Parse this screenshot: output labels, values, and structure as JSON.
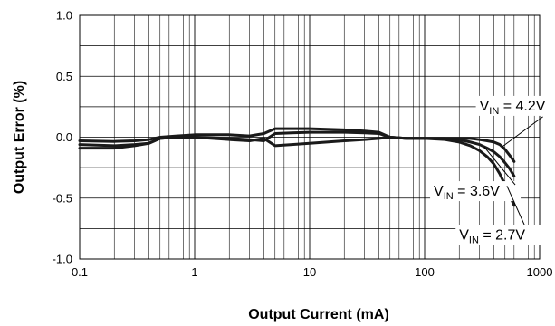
{
  "chart_data": {
    "type": "line",
    "title": "",
    "xlabel": "Output Current (mA)",
    "ylabel": "Output Error (%)",
    "xscale": "log",
    "xlim": [
      0.1,
      1000
    ],
    "ylim": [
      -1.0,
      1.0
    ],
    "x_tick_labels": [
      "0.1",
      "1",
      "10",
      "100",
      "1000"
    ],
    "y_tick_labels": [
      "1.0",
      "0.5",
      "0.0",
      "-0.5",
      "-1.0"
    ],
    "grid": true,
    "line_color": "#1a1a1a",
    "series": [
      {
        "x": [
          0.1,
          0.2,
          0.3,
          0.4,
          0.5,
          0.7,
          1,
          2,
          3,
          4,
          5,
          7,
          10,
          20,
          30,
          40,
          50,
          70,
          100,
          150,
          200,
          250,
          300,
          350,
          400,
          450,
          500,
          550,
          600
        ],
        "y": [
          -0.03,
          -0.035,
          -0.03,
          -0.02,
          0.0,
          0.01,
          0.02,
          0.02,
          0.01,
          0.03,
          0.07,
          0.07,
          0.07,
          0.06,
          0.05,
          0.04,
          0.0,
          -0.01,
          -0.01,
          -0.01,
          -0.01,
          -0.01,
          -0.02,
          -0.03,
          -0.04,
          -0.06,
          -0.1,
          -0.15,
          -0.2
        ]
      },
      {
        "x": [
          0.1,
          0.2,
          0.3,
          0.4,
          0.5,
          0.7,
          1,
          2,
          3,
          4,
          5,
          7,
          10,
          20,
          30,
          40,
          50,
          70,
          100,
          150,
          200,
          250,
          300,
          350,
          400,
          450,
          500,
          550,
          600
        ],
        "y": [
          -0.06,
          -0.07,
          -0.06,
          -0.05,
          -0.01,
          0.0,
          0.0,
          -0.01,
          -0.02,
          -0.03,
          0.03,
          0.035,
          0.04,
          0.04,
          0.035,
          0.03,
          0.0,
          -0.01,
          -0.01,
          -0.01,
          -0.02,
          -0.04,
          -0.06,
          -0.09,
          -0.12,
          -0.16,
          -0.21,
          -0.26,
          -0.32
        ]
      },
      {
        "x": [
          0.1,
          0.2,
          0.3,
          0.4,
          0.5,
          0.7,
          1,
          2,
          3,
          4,
          5,
          7,
          10,
          20,
          30,
          40,
          50,
          70,
          100,
          150,
          200,
          250,
          300,
          350,
          400,
          450,
          500,
          550,
          600
        ],
        "y": [
          -0.09,
          -0.09,
          -0.07,
          -0.05,
          -0.01,
          0.0,
          0.0,
          -0.02,
          -0.03,
          -0.01,
          -0.07,
          -0.06,
          -0.05,
          -0.03,
          -0.02,
          -0.01,
          0.0,
          -0.01,
          -0.01,
          -0.02,
          -0.04,
          -0.07,
          -0.11,
          -0.16,
          -0.22,
          -0.3,
          -0.39,
          -0.48,
          -0.56
        ]
      }
    ],
    "annotations": [
      {
        "text_main": "V",
        "text_sub": "IN",
        "text_rest": " = 4.2V",
        "x": 300,
        "y": 0.22,
        "arrow_to_x": 470,
        "arrow_to_y": -0.08
      },
      {
        "text_main": "V",
        "text_sub": "IN",
        "text_rest": " = 3.6V",
        "x": 120,
        "y": -0.48,
        "arrow_to_x": 330,
        "arrow_to_y": -0.08
      },
      {
        "text_main": "V",
        "text_sub": "IN",
        "text_rest": " = 2.7V",
        "x": 200,
        "y": -0.84,
        "arrow_to_x": 520,
        "arrow_to_y": -0.4
      }
    ]
  }
}
